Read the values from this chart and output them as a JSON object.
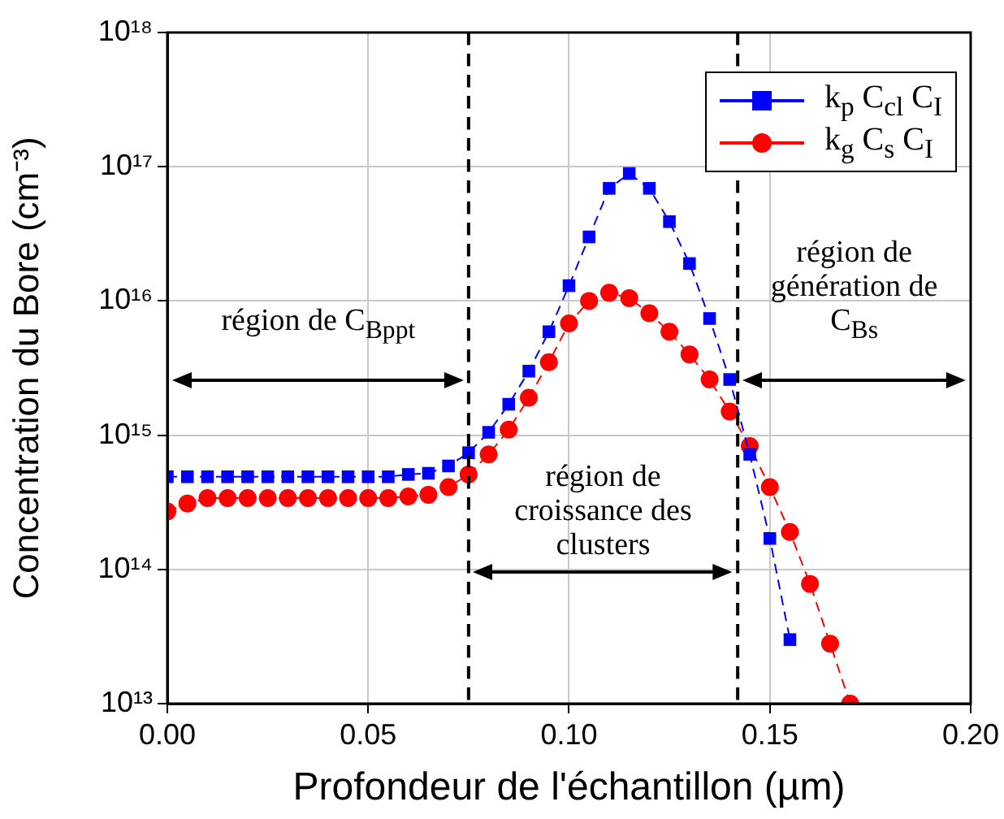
{
  "chart_data": {
    "type": "line",
    "xlabel": "Profondeur de l'échantillon (µm)",
    "ylabel": "Concentration du Bore (cm⁻³)",
    "xlim": [
      0,
      0.2
    ],
    "xticks": [
      {
        "value": 0,
        "label": "0.00"
      },
      {
        "value": 0.05,
        "label": "0.05"
      },
      {
        "value": 0.1,
        "label": "0.10"
      },
      {
        "value": 0.15,
        "label": "0.15"
      },
      {
        "value": 0.2,
        "label": "0.20"
      }
    ],
    "ylim": [
      10000000000000.0,
      1e+18
    ],
    "yticks": [
      {
        "value": 10000000000000.0,
        "label": "10¹³"
      },
      {
        "value": 100000000000000.0,
        "label": "10¹⁴"
      },
      {
        "value": 1000000000000000.0,
        "label": "10¹⁵"
      },
      {
        "value": 1e+16,
        "label": "10¹⁶"
      },
      {
        "value": 1e+17,
        "label": "10¹⁷"
      },
      {
        "value": 1e+18,
        "label": "10¹⁸"
      }
    ],
    "log": "y",
    "grid": true,
    "legend": "top right",
    "series": [
      {
        "name": "k$_{p}$ C$_{cl}$ C$_{I}$",
        "color": "#0000ff",
        "marker": "square",
        "line_style": "dashed",
        "x": [
          0,
          0.005,
          0.01,
          0.015,
          0.02,
          0.025,
          0.03,
          0.035,
          0.04,
          0.045,
          0.05,
          0.055,
          0.06,
          0.065,
          0.07,
          0.075,
          0.08,
          0.085,
          0.09,
          0.095,
          0.1,
          0.105,
          0.11,
          0.115,
          0.12,
          0.125,
          0.13,
          0.135,
          0.14,
          0.145,
          0.15,
          0.155
        ],
        "values": [
          490000000000000.0,
          490000000000000.0,
          490000000000000.0,
          490000000000000.0,
          490000000000000.0,
          490000000000000.0,
          490000000000000.0,
          490000000000000.0,
          490000000000000.0,
          490000000000000.0,
          490000000000000.0,
          490000000000000.0,
          510000000000000.0,
          520000000000000.0,
          590000000000000.0,
          740000000000000.0,
          1050000000000000.0,
          1700000000000000.0,
          3000000000000000.0,
          5900000000000000.0,
          1.3e+16,
          3e+16,
          6.9e+16,
          8.9e+16,
          6.9e+16,
          3.9e+16,
          1.9e+16,
          7400000000000000.0,
          2600000000000000.0,
          720000000000000.0,
          170000000000000.0,
          30000000000000.0
        ]
      },
      {
        "name": "k$_{g}$ C$_{s}$ C$_{I}$",
        "color": "#ff0000",
        "marker": "circle",
        "line_style": "dashed",
        "x": [
          0,
          0.005,
          0.01,
          0.015,
          0.02,
          0.025,
          0.03,
          0.035,
          0.04,
          0.045,
          0.05,
          0.055,
          0.06,
          0.065,
          0.07,
          0.075,
          0.08,
          0.085,
          0.09,
          0.095,
          0.1,
          0.105,
          0.11,
          0.115,
          0.12,
          0.125,
          0.13,
          0.135,
          0.14,
          0.145,
          0.15,
          0.155,
          0.16,
          0.165,
          0.17
        ],
        "values": [
          270000000000000.0,
          310000000000000.0,
          340000000000000.0,
          340000000000000.0,
          340000000000000.0,
          340000000000000.0,
          340000000000000.0,
          340000000000000.0,
          340000000000000.0,
          340000000000000.0,
          340000000000000.0,
          340000000000000.0,
          350000000000000.0,
          360000000000000.0,
          410000000000000.0,
          510000000000000.0,
          720000000000000.0,
          1100000000000000.0,
          1900000000000000.0,
          3500000000000000.0,
          6800000000000000.0,
          1e+16,
          1.15e+16,
          1.05e+16,
          8100000000000000.0,
          5900000000000000.0,
          4000000000000000.0,
          2600000000000000.0,
          1500000000000000.0,
          830000000000000.0,
          410000000000000.0,
          190000000000000.0,
          78000000000000.0,
          28000000000000.0,
          10000000000000.0
        ]
      }
    ],
    "ref_lines": [
      {
        "axis": "x",
        "value": 0.075,
        "color": "#000000",
        "line_style": "dashed"
      },
      {
        "axis": "x",
        "value": 0.142,
        "color": "#000000",
        "line_style": "dashed"
      }
    ],
    "annotations": [
      "région de C$_{Bppt}$",
      "région de croissance des clusters",
      "région de génération de C$_{Bs}$"
    ]
  }
}
